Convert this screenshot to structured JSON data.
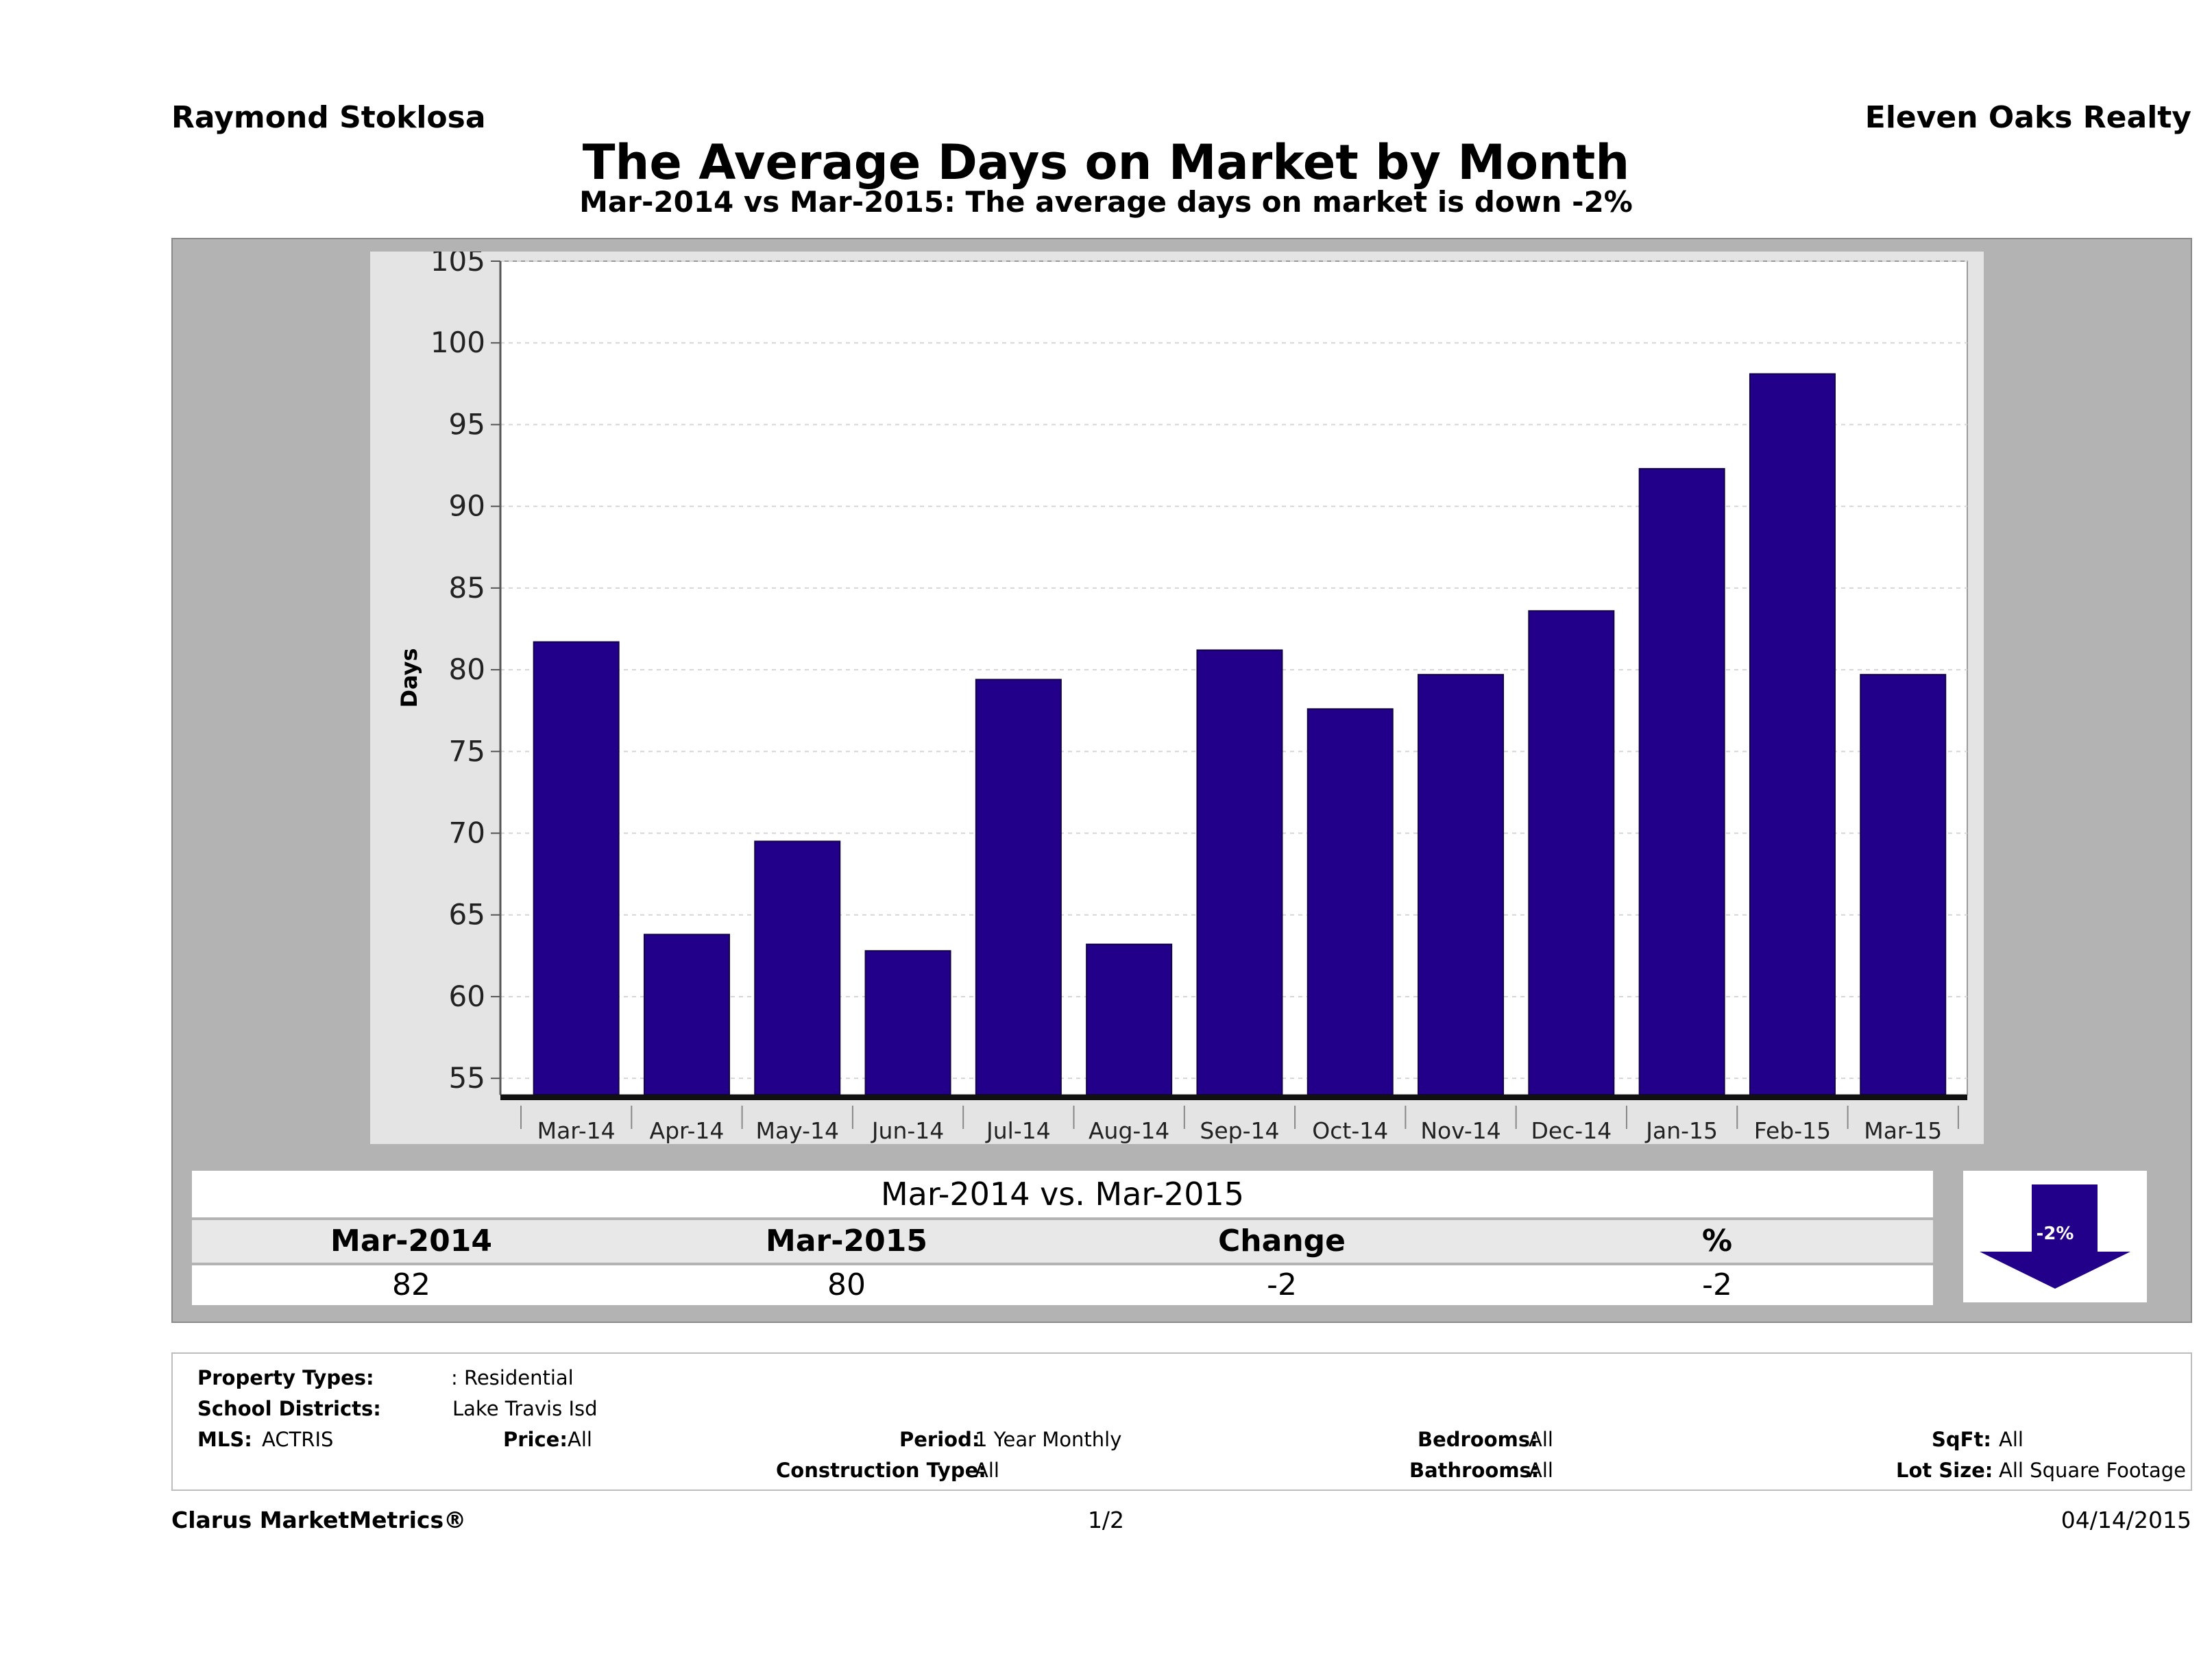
{
  "header": {
    "agent": "Raymond Stoklosa",
    "company": "Eleven Oaks Realty",
    "title": "The Average Days on Market by Month",
    "subtitle": "Mar-2014 vs Mar-2015: The average days on market is down -2%"
  },
  "chart_data": {
    "type": "bar",
    "ylabel": "Days",
    "xlabel": "",
    "ylim": [
      54,
      105
    ],
    "yticks": [
      55,
      60,
      65,
      70,
      75,
      80,
      85,
      90,
      95,
      100,
      105
    ],
    "grid": true,
    "categories": [
      "Mar-14",
      "Apr-14",
      "May-14",
      "Jun-14",
      "Jul-14",
      "Aug-14",
      "Sep-14",
      "Oct-14",
      "Nov-14",
      "Dec-14",
      "Jan-15",
      "Feb-15",
      "Mar-15"
    ],
    "values": [
      81.7,
      63.8,
      69.5,
      62.8,
      79.4,
      63.2,
      81.2,
      77.6,
      79.7,
      83.6,
      92.3,
      98.1,
      79.7
    ],
    "bar_color": "#22008a"
  },
  "comparison": {
    "title": "Mar-2014 vs. Mar-2015",
    "headers": [
      "Mar-2014",
      "Mar-2015",
      "Change",
      "%"
    ],
    "values": [
      "82",
      "80",
      "-2",
      "-2"
    ],
    "badge": "-2%",
    "badge_color": "#22008a"
  },
  "criteria": {
    "property_types_label": "Property Types:",
    "property_types_value": ": Residential",
    "school_districts_label": "School Districts:",
    "school_districts_value": "Lake Travis Isd",
    "mls_label": "MLS:",
    "mls_value": "ACTRIS",
    "price_label": "Price:",
    "price_value": "All",
    "period_label": "Period:",
    "period_value": "1 Year Monthly",
    "construction_label": "Construction Type:",
    "construction_value": "All",
    "bedrooms_label": "Bedrooms:",
    "bedrooms_value": "All",
    "bathrooms_label": "Bathrooms:",
    "bathrooms_value": "All",
    "sqft_label": "SqFt:",
    "sqft_value": "All",
    "lot_label": "Lot Size:",
    "lot_value": "All Square Footage"
  },
  "footer": {
    "brand": "Clarus MarketMetrics®",
    "page": "1/2",
    "date": "04/14/2015"
  }
}
